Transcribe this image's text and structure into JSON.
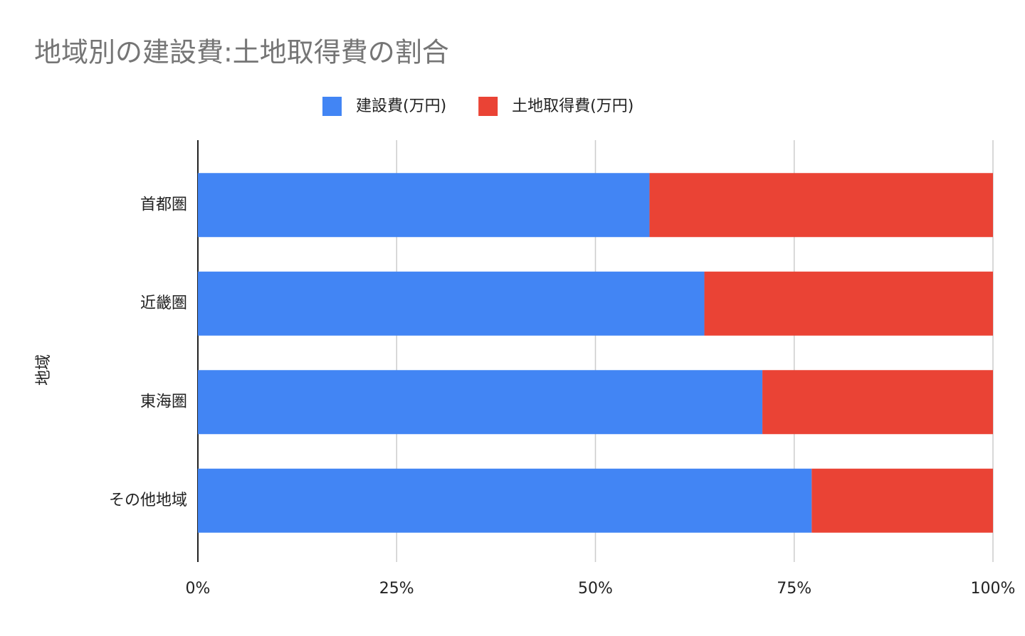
{
  "chart_data": {
    "type": "bar",
    "orientation": "horizontal",
    "stacked": true,
    "title": "地域別の建設費:土地取得費の割合",
    "y_label": "地域",
    "categories": [
      "首都圏",
      "近畿圏",
      "東海圏",
      "その他地域"
    ],
    "series": [
      {
        "name": "建設費(万円)",
        "color": "#4285f4",
        "values": [
          56.8,
          63.7,
          71.0,
          77.2
        ]
      },
      {
        "name": "土地取得費(万円)",
        "color": "#ea4335",
        "values": [
          43.2,
          36.3,
          29.0,
          22.8
        ]
      }
    ],
    "xlim": [
      0,
      100
    ],
    "xticks": [
      {
        "value": 0,
        "label": "0%"
      },
      {
        "value": 25,
        "label": "25%"
      },
      {
        "value": 50,
        "label": "50%"
      },
      {
        "value": 75,
        "label": "75%"
      },
      {
        "value": 100,
        "label": "100%"
      }
    ],
    "grid": true,
    "legend": "top"
  }
}
